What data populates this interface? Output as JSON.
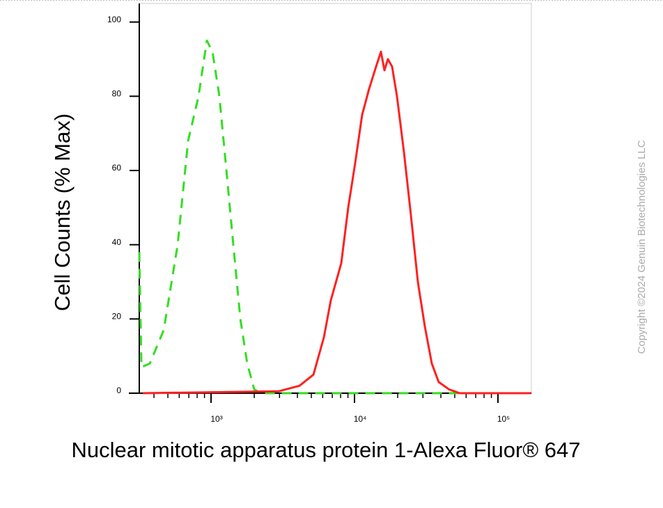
{
  "chart_data": {
    "type": "line",
    "y_label": "Cell Counts (% Max)",
    "x_label": "Nuclear mitotic apparatus protein 1-Alexa Fluor® 647",
    "watermark": "Copyright ©2024 Genuin Biotechnologies LLC",
    "xscale": "log",
    "xlim": [
      316,
      171000
    ],
    "ylim": [
      0,
      105
    ],
    "xticks": [
      {
        "value": 1000,
        "label": "10³"
      },
      {
        "value": 10000,
        "label": "10⁴"
      },
      {
        "value": 100000,
        "label": "10⁵"
      }
    ],
    "xminorticks": [
      400,
      500,
      600,
      700,
      800,
      900,
      2000,
      3000,
      4000,
      5000,
      6000,
      7000,
      8000,
      9000,
      20000,
      30000,
      40000,
      50000,
      60000,
      70000,
      80000,
      90000
    ],
    "yticks": [
      0,
      20,
      40,
      60,
      80,
      100
    ],
    "series": [
      {
        "color": "#33dd22",
        "dashed": true,
        "x": [
          316,
          327,
          374,
          468,
          585,
          692,
          818,
          935,
          1023,
          1143,
          1279,
          1430,
          1600,
          1787,
          2000,
          2238,
          170000
        ],
        "values": [
          38,
          7,
          8,
          17,
          40,
          68,
          80,
          95,
          92,
          80,
          60,
          40,
          20,
          8,
          1,
          0,
          0
        ]
      },
      {
        "color": "#ff2020",
        "dashed": false,
        "x": [
          334,
          2958,
          4140,
          5176,
          6115,
          6839,
          8088,
          9043,
          10110,
          11300,
          12640,
          14130,
          15280,
          16170,
          17090,
          18280,
          19770,
          22110,
          24720,
          27640,
          30910,
          34560,
          38640,
          45710,
          54070,
          170000
        ],
        "values": [
          0,
          0.5,
          2,
          5,
          15,
          25,
          35,
          50,
          62,
          75,
          82,
          88,
          92,
          87,
          90,
          88,
          80,
          65,
          48,
          30,
          18,
          8,
          3,
          1,
          0,
          0
        ]
      }
    ]
  }
}
